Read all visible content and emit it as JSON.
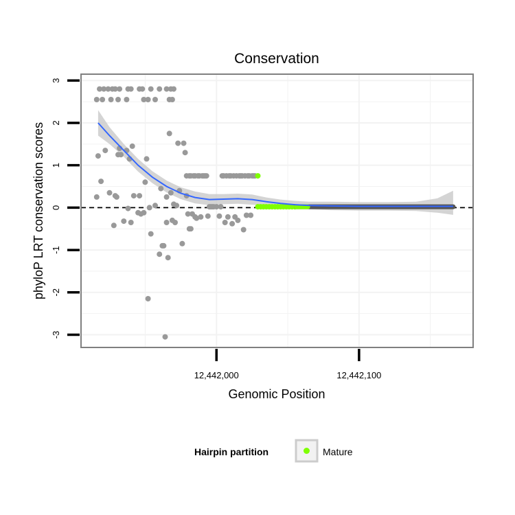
{
  "chart_data": {
    "type": "scatter",
    "title": "Conservation",
    "xlabel": "Genomic Position",
    "ylabel": "phyloP LRT conservation scores",
    "xlim": [
      12441905,
      12442180
    ],
    "ylim": [
      -3.3,
      3.15
    ],
    "x_ticks": [
      {
        "value": 12442000,
        "label": "12,442,000"
      },
      {
        "value": 12442100,
        "label": "12,442,100"
      }
    ],
    "y_ticks": [
      {
        "value": -3,
        "label": "-3"
      },
      {
        "value": -2,
        "label": "-2"
      },
      {
        "value": -1,
        "label": "-1"
      },
      {
        "value": 0,
        "label": "0"
      },
      {
        "value": 1,
        "label": "1"
      },
      {
        "value": 2,
        "label": "2"
      },
      {
        "value": 3,
        "label": "3"
      }
    ],
    "reference_line": {
      "y": 0,
      "style": "dashed"
    },
    "legend": {
      "title": "Hairpin partition",
      "position": "bottom",
      "entries": [
        {
          "label": "Mature",
          "color": "#7fff00"
        }
      ]
    },
    "colors": {
      "other": "#999999",
      "mature": "#7fff00",
      "smooth_line": "#3366ff",
      "ribbon": "#cccccc",
      "panel_border": "#7f7f7f",
      "grid": "#f2f2f2"
    },
    "series": [
      {
        "name": "Other",
        "points": [
          [
            12441916,
            2.55
          ],
          [
            12441918,
            2.8
          ],
          [
            12441920,
            2.55
          ],
          [
            12441921,
            2.8
          ],
          [
            12441924,
            2.8
          ],
          [
            12441926,
            2.55
          ],
          [
            12441927,
            2.8
          ],
          [
            12441929,
            2.8
          ],
          [
            12441931,
            2.55
          ],
          [
            12441932,
            2.8
          ],
          [
            12441937,
            2.55
          ],
          [
            12441938,
            2.8
          ],
          [
            12441940,
            2.8
          ],
          [
            12441946,
            2.8
          ],
          [
            12441948,
            2.8
          ],
          [
            12441949,
            2.55
          ],
          [
            12441952,
            2.55
          ],
          [
            12441954,
            2.8
          ],
          [
            12441957,
            2.55
          ],
          [
            12441960,
            2.8
          ],
          [
            12441965,
            2.8
          ],
          [
            12441967,
            2.55
          ],
          [
            12441968,
            2.8
          ],
          [
            12441969,
            2.55
          ],
          [
            12441970,
            2.8
          ],
          [
            12441916,
            0.25
          ],
          [
            12441917,
            1.22
          ],
          [
            12441919,
            0.62
          ],
          [
            12441922,
            1.35
          ],
          [
            12441925,
            0.35
          ],
          [
            12441928,
            -0.42
          ],
          [
            12441929,
            0.28
          ],
          [
            12441930,
            0.25
          ],
          [
            12441931,
            1.25
          ],
          [
            12441932,
            1.4
          ],
          [
            12441933,
            1.25
          ],
          [
            12441935,
            -0.32
          ],
          [
            12441937,
            1.35
          ],
          [
            12441938,
            -0.02
          ],
          [
            12441939,
            1.15
          ],
          [
            12441940,
            -0.35
          ],
          [
            12441941,
            1.45
          ],
          [
            12441942,
            0.28
          ],
          [
            12441945,
            -0.12
          ],
          [
            12441946,
            0.28
          ],
          [
            12441947,
            -0.15
          ],
          [
            12441949,
            -0.12
          ],
          [
            12441950,
            0.6
          ],
          [
            12441951,
            1.15
          ],
          [
            12441952,
            -2.15
          ],
          [
            12441953,
            0.0
          ],
          [
            12441954,
            -0.62
          ],
          [
            12441957,
            0.05
          ],
          [
            12441960,
            -1.1
          ],
          [
            12441961,
            0.45
          ],
          [
            12441962,
            -0.9
          ],
          [
            12441963,
            -0.9
          ],
          [
            12441964,
            -3.05
          ],
          [
            12441965,
            -0.35
          ],
          [
            12441965,
            0.25
          ],
          [
            12441966,
            -1.18
          ],
          [
            12441967,
            1.75
          ],
          [
            12441968,
            0.35
          ],
          [
            12441969,
            -0.3
          ],
          [
            12441970,
            0.08
          ],
          [
            12441971,
            -0.35
          ],
          [
            12441972,
            0.05
          ],
          [
            12441973,
            1.52
          ],
          [
            12441974,
            0.4
          ],
          [
            12441976,
            -0.85
          ],
          [
            12441977,
            1.52
          ],
          [
            12441978,
            1.3
          ],
          [
            12441979,
            0.28
          ],
          [
            12441980,
            -0.15
          ],
          [
            12441981,
            -0.5
          ],
          [
            12441982,
            -0.5
          ],
          [
            12441983,
            -0.15
          ],
          [
            12441985,
            -0.22
          ],
          [
            12441986,
            -0.25
          ],
          [
            12441989,
            -0.22
          ],
          [
            12441979,
            0.75
          ],
          [
            12441981,
            0.75
          ],
          [
            12441982,
            0.75
          ],
          [
            12441984,
            0.75
          ],
          [
            12441985,
            0.75
          ],
          [
            12441987,
            0.75
          ],
          [
            12441988,
            0.75
          ],
          [
            12441990,
            0.75
          ],
          [
            12441991,
            0.75
          ],
          [
            12441992,
            0.75
          ],
          [
            12441993,
            0.75
          ],
          [
            12441994,
            -0.2
          ],
          [
            12441995,
            0.02
          ],
          [
            12441996,
            0.02
          ],
          [
            12441997,
            0.02
          ],
          [
            12441998,
            0.02
          ],
          [
            12442000,
            0.02
          ],
          [
            12442002,
            -0.2
          ],
          [
            12442003,
            0.02
          ],
          [
            12442004,
            0.75
          ],
          [
            12442005,
            0.75
          ],
          [
            12442006,
            -0.35
          ],
          [
            12442007,
            0.75
          ],
          [
            12442008,
            -0.22
          ],
          [
            12442009,
            0.75
          ],
          [
            12442010,
            0.75
          ],
          [
            12442011,
            -0.38
          ],
          [
            12442012,
            0.75
          ],
          [
            12442013,
            -0.22
          ],
          [
            12442014,
            0.75
          ],
          [
            12442015,
            -0.3
          ],
          [
            12442016,
            0.75
          ],
          [
            12442017,
            0.75
          ],
          [
            12442018,
            0.75
          ],
          [
            12442019,
            -0.52
          ],
          [
            12442020,
            0.75
          ],
          [
            12442021,
            -0.18
          ],
          [
            12442022,
            0.75
          ],
          [
            12442023,
            0.75
          ],
          [
            12442024,
            -0.18
          ],
          [
            12442025,
            0.75
          ],
          [
            12442026,
            0.75
          ],
          [
            12442027,
            0.75
          ]
        ]
      },
      {
        "name": "Mature",
        "points": [
          [
            12442029,
            0.75
          ],
          [
            12442029,
            0.02
          ],
          [
            12442031,
            0.02
          ],
          [
            12442033,
            0.02
          ],
          [
            12442035,
            0.02
          ],
          [
            12442037,
            0.02
          ],
          [
            12442039,
            0.02
          ],
          [
            12442041,
            0.02
          ],
          [
            12442043,
            0.02
          ],
          [
            12442045,
            0.02
          ],
          [
            12442047,
            0.02
          ],
          [
            12442049,
            0.02
          ],
          [
            12442051,
            0.02
          ],
          [
            12442053,
            0.02
          ],
          [
            12442055,
            0.02
          ]
        ],
        "zero_run": {
          "from": 12442056,
          "to": 12442166,
          "y": 0.02
        }
      }
    ],
    "smooth": {
      "x": [
        12441917,
        12441925,
        12441935,
        12441945,
        12441955,
        12441965,
        12441975,
        12441985,
        12441995,
        12442005,
        12442015,
        12442025,
        12442035,
        12442045,
        12442055,
        12442065,
        12442080,
        12442100,
        12442120,
        12442140,
        12442155,
        12442166
      ],
      "y": [
        2.0,
        1.7,
        1.35,
        1.0,
        0.72,
        0.5,
        0.34,
        0.24,
        0.19,
        0.2,
        0.21,
        0.19,
        0.14,
        0.1,
        0.07,
        0.05,
        0.04,
        0.03,
        0.03,
        0.03,
        0.03,
        0.03
      ],
      "lower": [
        1.7,
        1.5,
        1.2,
        0.85,
        0.58,
        0.36,
        0.2,
        0.1,
        0.06,
        0.08,
        0.09,
        0.07,
        0.04,
        0.01,
        -0.02,
        -0.04,
        -0.06,
        -0.07,
        -0.07,
        -0.08,
        -0.12,
        -0.17
      ],
      "upper": [
        2.3,
        1.9,
        1.5,
        1.15,
        0.86,
        0.64,
        0.48,
        0.38,
        0.32,
        0.32,
        0.33,
        0.31,
        0.24,
        0.19,
        0.16,
        0.14,
        0.14,
        0.13,
        0.13,
        0.14,
        0.22,
        0.4
      ]
    }
  }
}
